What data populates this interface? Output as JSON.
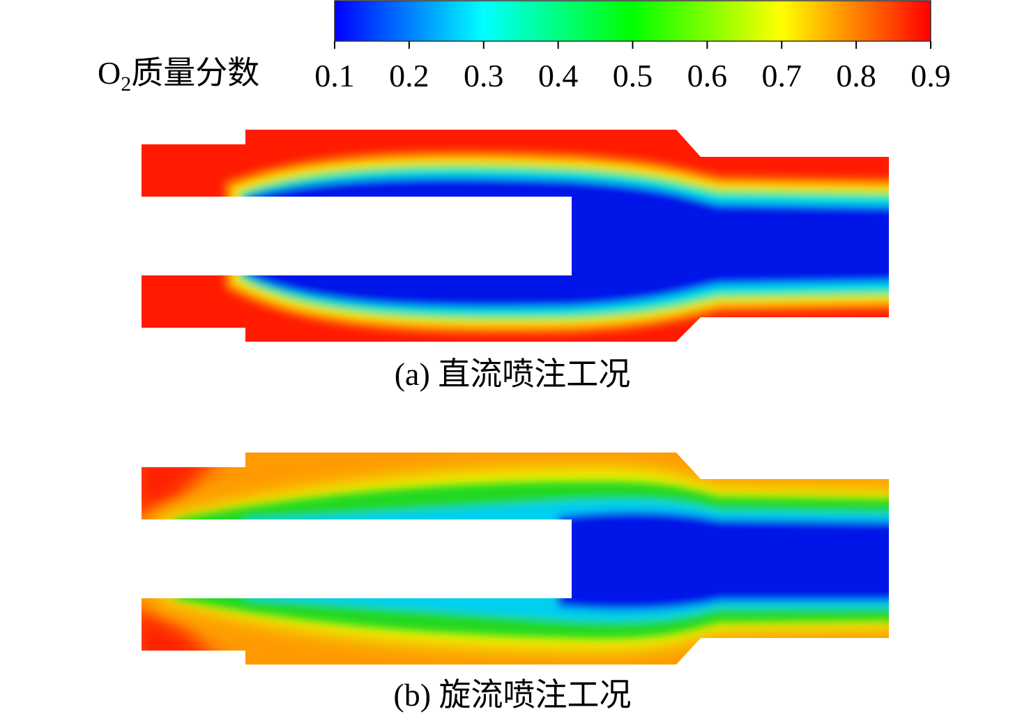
{
  "colorbar": {
    "label": {
      "symbol": "O",
      "subscript": "2",
      "text": "质量分数"
    },
    "range": [
      0.1,
      0.9
    ],
    "ticks": [
      0.1,
      0.2,
      0.3,
      0.4,
      0.5,
      0.6,
      0.7,
      0.8,
      0.9
    ],
    "colormap": [
      "#0000ff",
      "#00ffff",
      "#00ff00",
      "#ffff00",
      "#ff0000"
    ]
  },
  "panels": [
    {
      "caption": "(a) 直流喷注工况"
    },
    {
      "caption": "(b) 旋流喷注工况"
    }
  ]
}
